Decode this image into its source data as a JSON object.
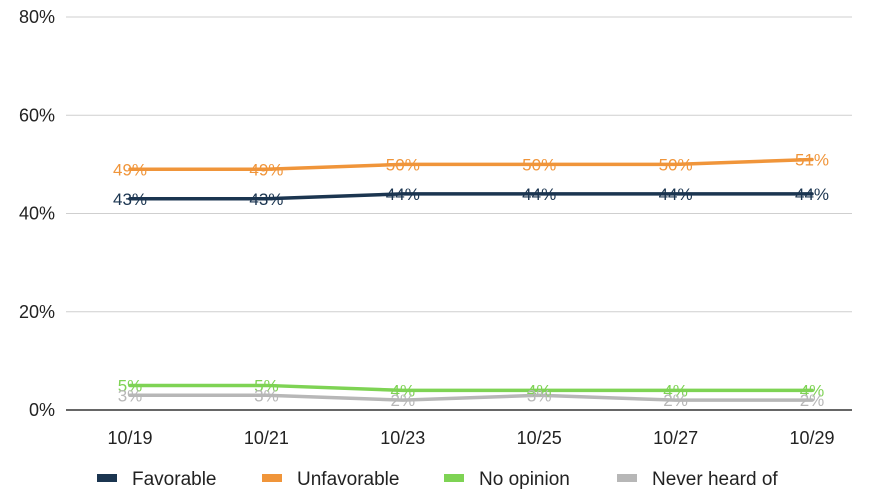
{
  "chart_data": {
    "type": "line",
    "title": "",
    "xlabel": "",
    "ylabel": "",
    "categories": [
      "10/19",
      "10/21",
      "10/23",
      "10/25",
      "10/27",
      "10/29"
    ],
    "ylim": [
      0,
      80
    ],
    "yticks": [
      0,
      20,
      40,
      60,
      80
    ],
    "ytick_labels": [
      "0%",
      "20%",
      "40%",
      "60%",
      "80%"
    ],
    "grid": true,
    "legend_position": "bottom",
    "series": [
      {
        "name": "Favorable",
        "color": "#1b3550",
        "values": [
          43,
          43,
          44,
          44,
          44,
          44
        ],
        "labels": [
          "43%",
          "43%",
          "44%",
          "44%",
          "44%",
          "44%"
        ]
      },
      {
        "name": "Unfavorable",
        "color": "#f0953a",
        "values": [
          49,
          49,
          50,
          50,
          50,
          51
        ],
        "labels": [
          "49%",
          "49%",
          "50%",
          "50%",
          "50%",
          "51%"
        ]
      },
      {
        "name": "No opinion",
        "color": "#7ed354",
        "values": [
          5,
          5,
          4,
          4,
          4,
          4
        ],
        "labels": [
          "5%",
          "5%",
          "4%",
          "4%",
          "4%",
          "4%"
        ]
      },
      {
        "name": "Never heard of",
        "color": "#b7b7b7",
        "values": [
          3,
          3,
          2,
          3,
          2,
          2
        ],
        "labels": [
          "3%",
          "3%",
          "2%",
          "3%",
          "2%",
          "2%"
        ]
      }
    ]
  }
}
